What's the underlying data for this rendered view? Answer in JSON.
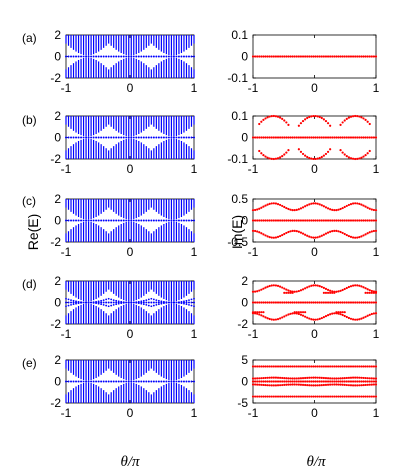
{
  "chart_data": [
    {
      "panel": "(a)",
      "column": "left",
      "type": "scatter",
      "ylim": [
        -2,
        2
      ],
      "xlim": [
        -1,
        1
      ],
      "yticks": [
        "2",
        "0",
        "-2"
      ],
      "xticks": [
        "-1",
        "0",
        "1"
      ],
      "series": [
        {
          "values_note": "dense vertical lines, band |Re(E)|>gap",
          "color": "#0000ff"
        }
      ]
    },
    {
      "panel": "(a)",
      "column": "right",
      "type": "scatter",
      "ylim": [
        -0.1,
        0.1
      ],
      "xlim": [
        -1,
        1
      ],
      "yticks": [
        "0.1",
        "0",
        "-0.1"
      ],
      "xticks": [
        "-1",
        "0",
        "1"
      ],
      "series": [
        {
          "x": [
            -1,
            1
          ],
          "y": [
            0,
            0
          ],
          "color": "#ff0000"
        }
      ]
    },
    {
      "panel": "(b)",
      "column": "left",
      "type": "scatter",
      "ylim": [
        -2,
        2
      ],
      "xlim": [
        -1,
        1
      ],
      "yticks": [
        "2",
        "0",
        "-2"
      ],
      "xticks": [
        "-1",
        "0",
        "1"
      ]
    },
    {
      "panel": "(b)",
      "column": "right",
      "type": "scatter",
      "ylim": [
        -0.1,
        0.1
      ],
      "xlim": [
        -1,
        1
      ],
      "yticks": [
        "0.1",
        "0",
        "-0.1"
      ],
      "xticks": [
        "-1",
        "0",
        "1"
      ],
      "series": [
        {
          "amp": 0.1,
          "bubbles_at": [
            -1,
            0,
            1
          ],
          "color": "#ff0000"
        }
      ]
    },
    {
      "panel": "(c)",
      "column": "left",
      "type": "scatter",
      "ylim": [
        -2,
        2
      ],
      "xlim": [
        -1,
        1
      ],
      "yticks": [
        "2",
        "0",
        "-2"
      ],
      "xticks": [
        "-1",
        "0",
        "1"
      ]
    },
    {
      "panel": "(c)",
      "column": "right",
      "type": "scatter",
      "ylim": [
        -0.5,
        0.5
      ],
      "xlim": [
        -1,
        1
      ],
      "yticks": [
        "0.5",
        "0",
        "-0.5"
      ],
      "xticks": [
        "-1",
        "0",
        "1"
      ]
    },
    {
      "panel": "(d)",
      "column": "left",
      "type": "scatter",
      "ylim": [
        -2,
        2
      ],
      "xlim": [
        -1,
        1
      ],
      "yticks": [
        "2",
        "0",
        "-2"
      ],
      "xticks": [
        "-1",
        "0",
        "1"
      ]
    },
    {
      "panel": "(d)",
      "column": "right",
      "type": "scatter",
      "ylim": [
        -2,
        2
      ],
      "xlim": [
        -1,
        1
      ],
      "yticks": [
        "2",
        "0",
        "-2"
      ],
      "xticks": [
        "-1",
        "0",
        "1"
      ]
    },
    {
      "panel": "(e)",
      "column": "left",
      "type": "scatter",
      "ylim": [
        -2,
        2
      ],
      "xlim": [
        -1,
        1
      ],
      "yticks": [
        "2",
        "0",
        "-2"
      ],
      "xticks": [
        "-1",
        "0",
        "1"
      ]
    },
    {
      "panel": "(e)",
      "column": "right",
      "type": "scatter",
      "ylim": [
        -5,
        5
      ],
      "xlim": [
        -1,
        1
      ],
      "yticks": [
        "5",
        "0",
        "-5"
      ],
      "xticks": [
        "-1",
        "0",
        "1"
      ]
    }
  ],
  "labels": {
    "panels": [
      "(a)",
      "(b)",
      "(c)",
      "(d)",
      "(e)"
    ],
    "ylabel_left": "Re(E)",
    "ylabel_right": "Im(E)",
    "xlabel": "θ/π"
  },
  "colors": {
    "left_series": "#0000ff",
    "right_series": "#ff0000"
  }
}
